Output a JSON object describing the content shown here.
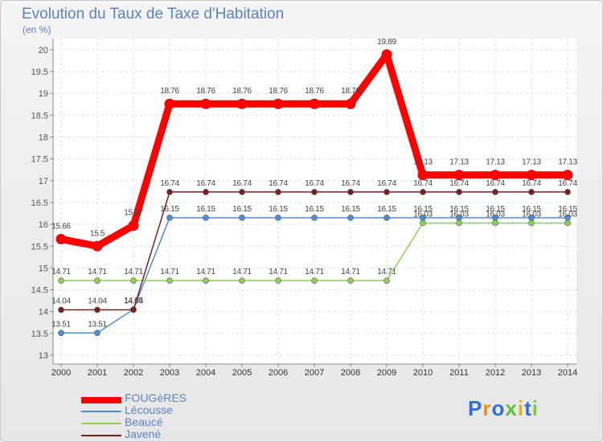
{
  "chart_data": {
    "type": "line",
    "title": "Evolution du Taux de Taxe d'Habitation",
    "ylabel": "(en %)",
    "xlabel": "",
    "ylim": [
      13,
      20
    ],
    "yticks": [
      "13",
      "13.5",
      "14",
      "14.5",
      "15",
      "15.5",
      "16",
      "16.5",
      "17",
      "17.5",
      "18",
      "18.5",
      "19",
      "19.5",
      "20"
    ],
    "categories": [
      "2000",
      "2001",
      "2002",
      "2003",
      "2004",
      "2005",
      "2006",
      "2007",
      "2008",
      "2009",
      "2010",
      "2011",
      "2012",
      "2013",
      "2014"
    ],
    "grid": true,
    "series": [
      {
        "name": "FOUGèRES",
        "color": "#ff0000",
        "values": [
          15.66,
          15.5,
          15.97,
          18.76,
          18.76,
          18.76,
          18.76,
          18.76,
          18.76,
          19.89,
          17.13,
          17.13,
          17.13,
          17.13,
          17.13
        ],
        "labels": [
          "15.66",
          "15.5",
          "15.97",
          "18.76",
          "18.76",
          "18.76",
          "18.76",
          "18.76",
          "18.76",
          "19.89",
          "17.13",
          "17.13",
          "17.13",
          "17.13",
          "17.13"
        ]
      },
      {
        "name": "Lécousse",
        "color": "#4a90d9",
        "values": [
          13.51,
          13.51,
          14.05,
          16.15,
          16.15,
          16.15,
          16.15,
          16.15,
          16.15,
          16.15,
          16.15,
          16.15,
          16.15,
          16.15,
          16.15
        ],
        "labels": [
          "13.51",
          "13.51",
          "14.05",
          "16.15",
          "16.15",
          "16.15",
          "16.15",
          "16.15",
          "16.15",
          "16.15",
          "16.15",
          "16.15",
          "16.15",
          "16.15",
          "16.15"
        ]
      },
      {
        "name": "Beaucé",
        "color": "#8fd14f",
        "values": [
          14.71,
          14.71,
          14.71,
          14.71,
          14.71,
          14.71,
          14.71,
          14.71,
          14.71,
          14.71,
          16.03,
          16.03,
          16.03,
          16.03,
          16.03
        ],
        "labels": [
          "14.71",
          "14.71",
          "14.71",
          "14.71",
          "14.71",
          "14.71",
          "14.71",
          "14.71",
          "14.71",
          "14.71",
          "16.03",
          "16.03",
          "16.03",
          "16.03",
          "16.03"
        ]
      },
      {
        "name": "Javené",
        "color": "#7a1f1f",
        "values": [
          14.04,
          14.04,
          14.04,
          16.74,
          16.74,
          16.74,
          16.74,
          16.74,
          16.74,
          16.74,
          16.74,
          16.74,
          16.74,
          16.74,
          16.74
        ],
        "labels": [
          "14.04",
          "14.04",
          "14.04",
          "16.74",
          "16.74",
          "16.74",
          "16.74",
          "16.74",
          "16.74",
          "16.74",
          "16.74",
          "16.74",
          "16.74",
          "16.74",
          "16.74"
        ]
      }
    ]
  },
  "legend": [
    "FOUGèRES",
    "Lécousse",
    "Beaucé",
    "Javené"
  ],
  "logo": {
    "text": "Proxiti",
    "colors": [
      "#2f6fd6",
      "#f28c1a",
      "#2f6fd6",
      "#5bbf3a",
      "#e0b21a",
      "#2f6fd6",
      "#7ac943"
    ]
  }
}
